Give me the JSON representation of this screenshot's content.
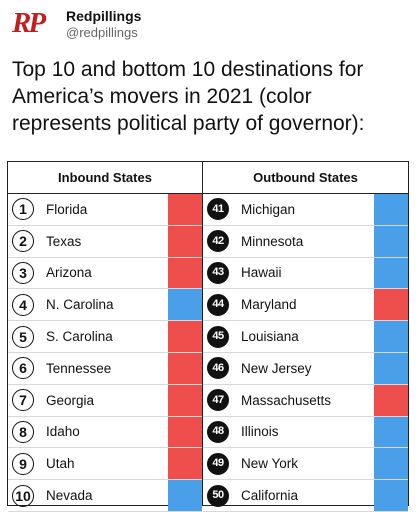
{
  "header": {
    "logo": "RP",
    "name": "Redpillings",
    "handle": "@redpillings"
  },
  "tweet_text": "Top 10 and bottom 10 destinations for America’s movers in 2021 (color represents political party of governor):",
  "colors": {
    "republican": "#ee4e4c",
    "democrat": "#4a9fe9"
  },
  "inbound": {
    "title": "Inbound States",
    "rows": [
      {
        "rank": "1",
        "state": "Florida",
        "party": "republican"
      },
      {
        "rank": "2",
        "state": "Texas",
        "party": "republican"
      },
      {
        "rank": "3",
        "state": "Arizona",
        "party": "republican"
      },
      {
        "rank": "4",
        "state": "N. Carolina",
        "party": "democrat"
      },
      {
        "rank": "5",
        "state": "S. Carolina",
        "party": "republican"
      },
      {
        "rank": "6",
        "state": "Tennessee",
        "party": "republican"
      },
      {
        "rank": "7",
        "state": "Georgia",
        "party": "republican"
      },
      {
        "rank": "8",
        "state": "Idaho",
        "party": "republican"
      },
      {
        "rank": "9",
        "state": "Utah",
        "party": "republican"
      },
      {
        "rank": "10",
        "state": "Nevada",
        "party": "democrat"
      }
    ]
  },
  "outbound": {
    "title": "Outbound States",
    "rows": [
      {
        "rank": "41",
        "state": "Michigan",
        "party": "democrat"
      },
      {
        "rank": "42",
        "state": "Minnesota",
        "party": "democrat"
      },
      {
        "rank": "43",
        "state": "Hawaii",
        "party": "democrat"
      },
      {
        "rank": "44",
        "state": "Maryland",
        "party": "republican"
      },
      {
        "rank": "45",
        "state": "Louisiana",
        "party": "democrat"
      },
      {
        "rank": "46",
        "state": "New Jersey",
        "party": "democrat"
      },
      {
        "rank": "47",
        "state": "Massachusetts",
        "party": "republican"
      },
      {
        "rank": "48",
        "state": "Illinois",
        "party": "democrat"
      },
      {
        "rank": "49",
        "state": "New York",
        "party": "democrat"
      },
      {
        "rank": "50",
        "state": "California",
        "party": "democrat"
      }
    ]
  }
}
